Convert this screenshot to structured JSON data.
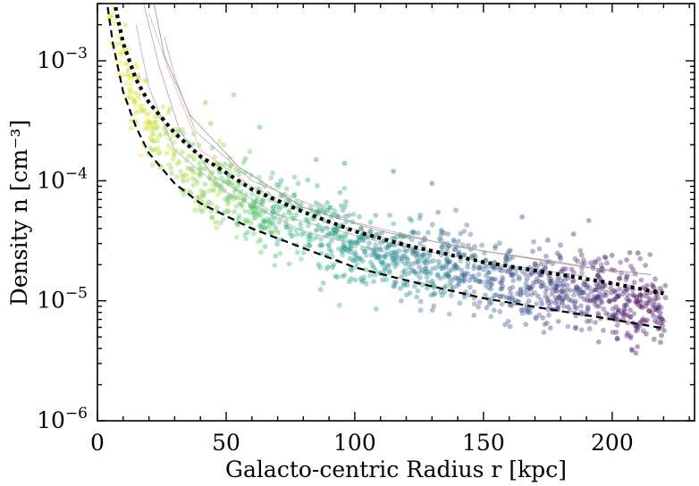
{
  "chart_data": {
    "type": "scatter",
    "title": "",
    "xlabel": "Galacto-centric Radius r [kpc]",
    "ylabel": "Density n [cm⁻³]",
    "xlim": [
      0,
      232
    ],
    "ylim": [
      1e-06,
      0.003
    ],
    "yscale": "log",
    "grid": false,
    "x_ticks": [
      0,
      50,
      100,
      150,
      200
    ],
    "x_tick_labels": [
      "0",
      "50",
      "100",
      "150",
      "200"
    ],
    "y_ticks": [
      1e-06,
      1e-05,
      0.0001,
      0.001
    ],
    "y_tick_labels": [
      {
        "base": "10",
        "exp": "−6"
      },
      {
        "base": "10",
        "exp": "−5"
      },
      {
        "base": "10",
        "exp": "−4"
      },
      {
        "base": "10",
        "exp": "−3"
      }
    ],
    "colormap": [
      "#fde725",
      "#b5de2b",
      "#6ece58",
      "#35b779",
      "#1f9e89",
      "#26828e",
      "#31688e",
      "#3e4989",
      "#482878",
      "#440154"
    ],
    "model_curves": [
      {
        "name": "dotted-model",
        "style": "dotted",
        "x": [
          7,
          10,
          15,
          20,
          30,
          40,
          60,
          80,
          100,
          120,
          150,
          180,
          200,
          220
        ],
        "y": [
          0.0028,
          0.0014,
          0.0007,
          0.00045,
          0.00025,
          0.00016,
          8.5e-05,
          5.5e-05,
          3.8e-05,
          2.9e-05,
          2.1e-05,
          1.65e-05,
          1.4e-05,
          1.15e-05
        ]
      },
      {
        "name": "dashed-model",
        "style": "dashed",
        "x": [
          4,
          6,
          10,
          15,
          20,
          30,
          40,
          60,
          80,
          100,
          120,
          150,
          180,
          200,
          220
        ],
        "y": [
          0.0028,
          0.0014,
          0.00055,
          0.00028,
          0.00017,
          9.5e-05,
          6.5e-05,
          4e-05,
          2.75e-05,
          1.9e-05,
          1.48e-05,
          1.05e-05,
          8.2e-06,
          7e-06,
          5.9e-06
        ]
      }
    ],
    "trend_lines": [
      {
        "x": [
          22,
          26,
          36,
          55,
          80,
          110,
          150,
          190,
          215
        ],
        "y": [
          0.003,
          0.0011,
          0.00035,
          0.00013,
          6e-05,
          3.8e-05,
          2.6e-05,
          1.9e-05,
          1.65e-05
        ]
      },
      {
        "x": [
          26,
          30,
          38,
          60,
          100,
          140,
          180,
          210
        ],
        "y": [
          0.0016,
          0.00075,
          0.00026,
          0.0001,
          4.5e-05,
          2.8e-05,
          2.1e-05,
          1.6e-05
        ]
      },
      {
        "x": [
          18,
          24,
          32,
          45,
          70,
          110,
          150,
          190
        ],
        "y": [
          0.003,
          0.0009,
          0.00026,
          0.00011,
          5.2e-05,
          3.1e-05,
          2.1e-05,
          1.6e-05
        ]
      },
      {
        "x": [
          20,
          28,
          40,
          60,
          90,
          130
        ],
        "y": [
          0.0025,
          0.0008,
          0.00018,
          9e-05,
          4.5e-05,
          2.6e-05
        ]
      },
      {
        "x": [
          15,
          20,
          30,
          50,
          80,
          120
        ],
        "y": [
          0.002,
          0.0006,
          0.00018,
          8e-05,
          3.8e-05,
          2.3e-05
        ]
      }
    ],
    "scatter_spec": {
      "n_points": 1500,
      "x_min": 4,
      "x_max": 221,
      "spread_dex": 0.16,
      "outliers": [
        {
          "x": 42,
          "y": 0.00045
        },
        {
          "x": 53,
          "y": 0.00052
        },
        {
          "x": 44,
          "y": 0.0003
        },
        {
          "x": 63,
          "y": 0.00028
        },
        {
          "x": 85,
          "y": 0.00015
        },
        {
          "x": 96,
          "y": 0.00014
        },
        {
          "x": 115,
          "y": 0.00012
        },
        {
          "x": 130,
          "y": 9.5e-05
        },
        {
          "x": 165,
          "y": 5e-05
        },
        {
          "x": 185,
          "y": 3.6e-05
        },
        {
          "x": 210,
          "y": 2.5e-05
        },
        {
          "x": 175,
          "y": 3.2e-05
        }
      ]
    }
  }
}
